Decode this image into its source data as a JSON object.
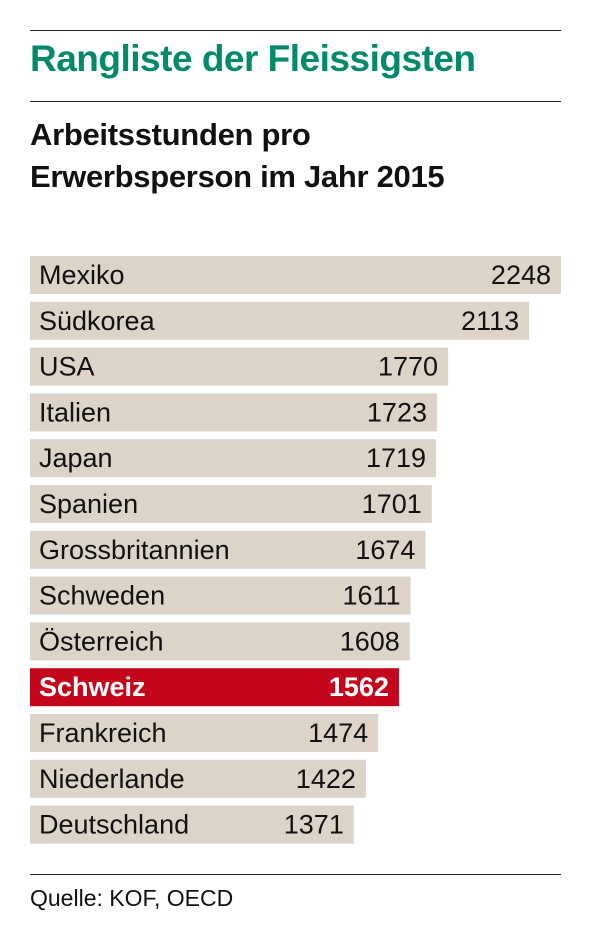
{
  "title": "Rangliste der Fleissigsten",
  "subtitle_line1": "Arbeitsstunden pro",
  "subtitle_line2": "Erwerbsperson im Jahr 2015",
  "source": "Quelle: KOF, OECD",
  "colors": {
    "title": "#008a6a",
    "bar": "#dcd3c9",
    "highlight": "#c4061c",
    "text": "#111111",
    "highlight_text": "#ffffff"
  },
  "chart_data": {
    "type": "bar",
    "orientation": "horizontal",
    "categories": [
      "Mexiko",
      "Südkorea",
      "USA",
      "Italien",
      "Japan",
      "Spanien",
      "Grossbritannien",
      "Schweden",
      "Österreich",
      "Schweiz",
      "Frankreich",
      "Niederlande",
      "Deutschland"
    ],
    "values": [
      2248,
      2113,
      1770,
      1723,
      1719,
      1701,
      1674,
      1611,
      1608,
      1562,
      1474,
      1422,
      1371
    ],
    "highlight_index": 9,
    "xlim": [
      0,
      2248
    ]
  }
}
